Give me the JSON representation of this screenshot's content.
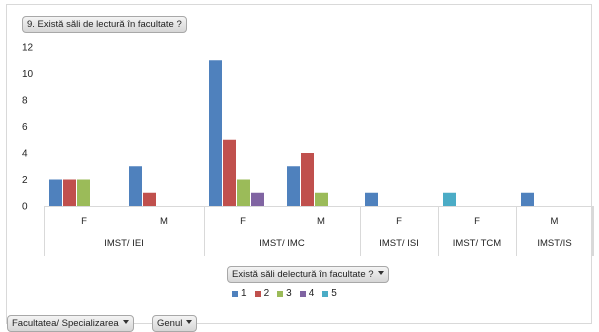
{
  "chart_data": {
    "type": "bar",
    "title": "9. Există săli de lectură în facultate ?",
    "ylim": [
      0,
      12
    ],
    "yticks": [
      0,
      2,
      4,
      6,
      8,
      10,
      12
    ],
    "grid": false,
    "legend_position": "bottom",
    "legend_title": "Există săli delectură în facultate ?",
    "series": [
      {
        "name": "1",
        "color": "#4f81bd",
        "values": [
          2,
          3,
          11,
          3,
          1,
          0,
          1
        ]
      },
      {
        "name": "2",
        "color": "#c0504d",
        "values": [
          2,
          1,
          5,
          4,
          0,
          0,
          0
        ]
      },
      {
        "name": "3",
        "color": "#9bbb59",
        "values": [
          2,
          0,
          2,
          1,
          0,
          0,
          0
        ]
      },
      {
        "name": "4",
        "color": "#8064a2",
        "values": [
          0,
          0,
          1,
          0,
          0,
          0,
          0
        ]
      },
      {
        "name": "5",
        "color": "#4bacc6",
        "values": [
          0,
          0,
          0,
          0,
          0,
          1,
          0
        ]
      }
    ],
    "categories": [
      {
        "inner": "F",
        "outer": "IMST/ IEI"
      },
      {
        "inner": "M",
        "outer": "IMST/ IEI"
      },
      {
        "inner": "F",
        "outer": "IMST/ IMC"
      },
      {
        "inner": "M",
        "outer": "IMST/ IMC"
      },
      {
        "inner": "F",
        "outer": "IMST/ ISI"
      },
      {
        "inner": "F",
        "outer": "IMST/ TCM"
      },
      {
        "inner": "M",
        "outer": "IMST/IS"
      }
    ],
    "groups": [
      "IMST/ IEI",
      "IMST/ IMC",
      "IMST/ ISI",
      "IMST/ TCM",
      "IMST/IS"
    ]
  },
  "fields": {
    "row_field_1": "Facultatea/ Specializarea",
    "row_field_2": "Genul"
  }
}
